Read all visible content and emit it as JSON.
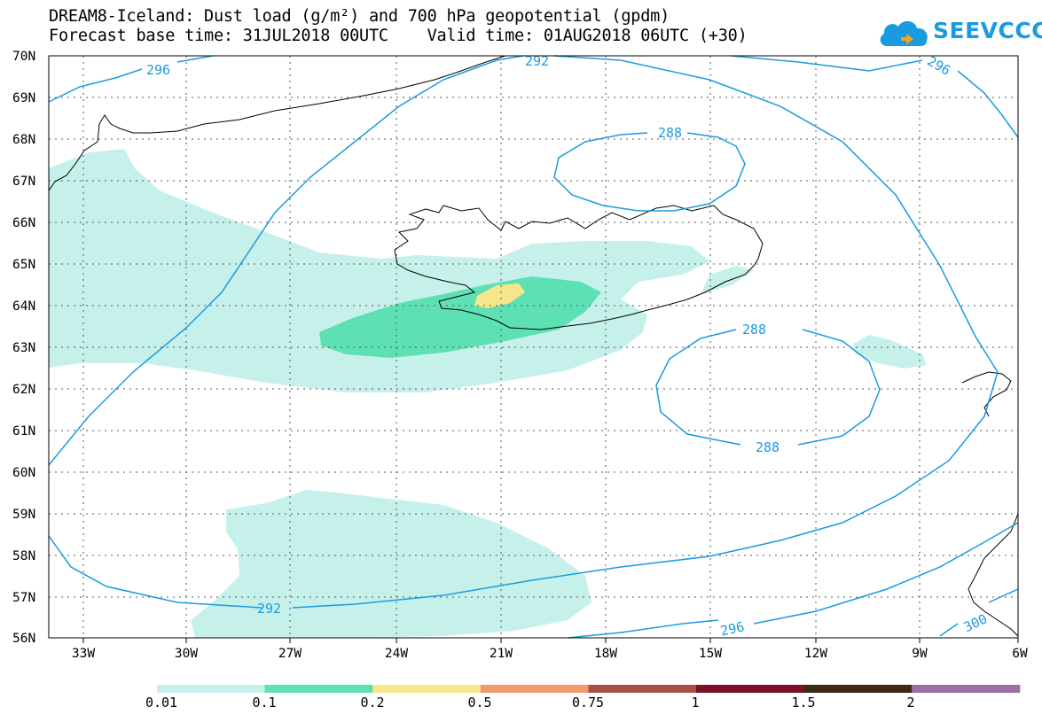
{
  "title": {
    "line1": "DREAM8-Iceland: Dust load (g/m²) and 700 hPa geopotential (gpdm)",
    "line2": "Forecast base time: 31JUL2018 00UTC    Valid time: 01AUG2018 06UTC (+30)"
  },
  "logo": {
    "text": "SEEVCCC",
    "icon": "cloud-arrow-icon",
    "color": "#1a9be0"
  },
  "axes": {
    "lat_labels": [
      "70N",
      "69N",
      "68N",
      "67N",
      "66N",
      "65N",
      "64N",
      "63N",
      "62N",
      "61N",
      "60N",
      "59N",
      "58N",
      "57N",
      "56N"
    ],
    "lon_labels": [
      "33W",
      "30W",
      "27W",
      "24W",
      "21W",
      "18W",
      "15W",
      "12W",
      "9W",
      "6W"
    ],
    "lat_range": [
      56,
      70
    ],
    "lon_range": [
      -34.2,
      -6
    ]
  },
  "contours": {
    "color": "#1a9be0",
    "labels": [
      "296",
      "292",
      "296",
      "288",
      "288",
      "288",
      "292",
      "296",
      "300"
    ]
  },
  "legend": {
    "colors": [
      "#c6f1ea",
      "#5ee0b5",
      "#f7e68a",
      "#f09a6e",
      "#a84f4a",
      "#7d0f2b",
      "#3c2a17",
      "#9a6fa6"
    ],
    "labels": [
      "0.01",
      "0.1",
      "0.2",
      "0.5",
      "0.75",
      "1",
      "1.5",
      "2"
    ]
  }
}
